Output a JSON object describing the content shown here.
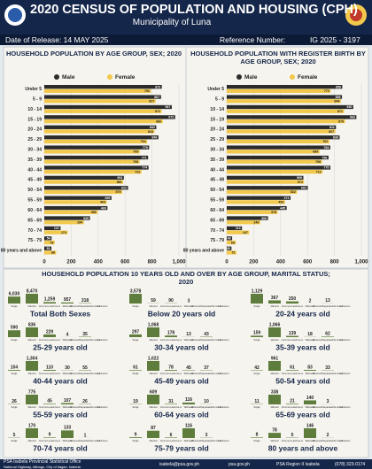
{
  "header": {
    "title": "2020 CENSUS OF POPULATION AND HOUSING (CPH)",
    "subtitle": "Municipality of Luna",
    "release": "Date of Release: 14 MAY 2025",
    "reference_label": "Reference Number:",
    "reference_number": "IG 2025 - 3197"
  },
  "chart_data": [
    {
      "type": "hbar",
      "title": "HOUSEHOLD POPULATION BY AGE GROUP, SEX; 2020",
      "categories": [
        "Under 5",
        "5 - 9",
        "10 - 14",
        "15 - 19",
        "20 - 24",
        "25 - 29",
        "30 - 34",
        "35 - 39",
        "40 - 44",
        "45 - 49",
        "50 - 54",
        "55 - 59",
        "60 - 64",
        "65 - 69",
        "70 - 74",
        "75 - 79",
        "80 years and above"
      ],
      "series": [
        {
          "name": "Male",
          "color": "#2b2b2b",
          "values": [
            873,
            867,
            947,
            972,
            832,
            848,
            779,
            771,
            774,
            591,
            622,
            499,
            469,
            339,
            121,
            54,
            53
          ]
        },
        {
          "name": "Female",
          "color": "#f2c94c",
          "values": [
            792,
            827,
            872,
            880,
            818,
            764,
            709,
            708,
            722,
            586,
            579,
            464,
            396,
            294,
            174,
            78,
            88
          ]
        }
      ],
      "xlim": [
        0,
        1000
      ],
      "xticks": [
        0,
        200,
        400,
        600,
        800,
        {
          "value": 1000,
          "label": "1,000"
        }
      ],
      "grid": true,
      "legend": "top"
    },
    {
      "type": "hbar",
      "title": "HOUSEHOLD POPULATION WITH REGISTER BIRTH BY AGE GROUP, SEX; 2020",
      "categories": [
        "Under 5",
        "5 - 9",
        "10 - 14",
        "15 - 19",
        "20 - 24",
        "25 - 29",
        "30 - 34",
        "35 - 39",
        "40 - 44",
        "45 - 49",
        "50 - 54",
        "55 - 59",
        "60 - 64",
        "65 - 69",
        "70 - 74",
        "75 - 79",
        "80 years and above"
      ],
      "series": [
        {
          "name": "Male",
          "color": "#2b2b2b",
          "values": [
            858,
            856,
            940,
            963,
            811,
            838,
            769,
            756,
            770,
            569,
            602,
            474,
            445,
            306,
            113,
            40,
            35
          ]
        },
        {
          "name": "Female",
          "color": "#f2c94c",
          "values": [
            772,
            848,
            871,
            879,
            807,
            762,
            689,
            708,
            712,
            574,
            522,
            433,
            378,
            249,
            167,
            68,
            72
          ]
        }
      ],
      "xlim": [
        0,
        1000
      ],
      "xticks": [
        0,
        200,
        400,
        600,
        800,
        {
          "value": 1000,
          "label": "1,000"
        }
      ],
      "grid": true,
      "legend": "top"
    },
    {
      "type": "panels",
      "title": "HOUSEHOLD POPULATION 10 YEARS OLD AND OVER BY AGE GROUP, MARITAL STATUS; 2020",
      "categories": [
        "Single",
        "Married",
        "Common-Law/Live-in",
        "Widowed",
        "Divorced/Separated/Annulled",
        "Unknown"
      ],
      "color": "#5e7d3c",
      "panels": [
        {
          "title": "Total Both Sexes",
          "values": [
            6030,
            8470,
            1259,
            957,
            318,
            null
          ],
          "value_labels": [
            "6,030",
            "8,470",
            "1,259",
            "957",
            "318",
            null
          ]
        },
        {
          "title": "Below 20 years old",
          "values": [
            3578,
            59,
            90,
            3,
            null,
            null
          ],
          "value_labels": [
            "3,578",
            "59",
            "90",
            "3",
            null,
            null
          ]
        },
        {
          "title": "20-24 years old",
          "values": [
            1129,
            367,
            250,
            2,
            13,
            null
          ],
          "value_labels": [
            "1,129",
            "367",
            "250",
            "2",
            "13",
            null
          ]
        },
        {
          "title": "25-29 years old",
          "values": [
            590,
            836,
            229,
            4,
            35,
            null
          ],
          "value_labels": [
            "590",
            "836",
            "229",
            "4",
            "35",
            null
          ]
        },
        {
          "title": "30-34 years old",
          "values": [
            297,
            1068,
            178,
            13,
            43,
            null
          ],
          "value_labels": [
            "297",
            "1,068",
            "178",
            "13",
            "43",
            null
          ]
        },
        {
          "title": "35-39 years old",
          "values": [
            159,
            1066,
            139,
            18,
            62,
            null
          ],
          "value_labels": [
            "159",
            "1,066",
            "139",
            "18",
            "62",
            null
          ]
        },
        {
          "title": "40-44 years old",
          "values": [
            104,
            1304,
            110,
            30,
            55,
            null
          ],
          "value_labels": [
            "104",
            "1,304",
            "110",
            "30",
            "55",
            null
          ]
        },
        {
          "title": "45-49 years old",
          "values": [
            61,
            1022,
            78,
            45,
            37,
            null
          ],
          "value_labels": [
            "61",
            "1,022",
            "78",
            "45",
            "37",
            null
          ]
        },
        {
          "title": "50-54 years old",
          "values": [
            42,
            961,
            61,
            83,
            33,
            null
          ],
          "value_labels": [
            "42",
            "961",
            "61",
            "83",
            "33",
            null
          ]
        },
        {
          "title": "55-59 years old",
          "values": [
            26,
            775,
            45,
            107,
            26,
            null
          ],
          "value_labels": [
            "26",
            "775",
            "45",
            "107",
            "26",
            null
          ]
        },
        {
          "title": "60-64 years old",
          "values": [
            19,
            609,
            31,
            116,
            10,
            null
          ],
          "value_labels": [
            "19",
            "609",
            "31",
            "116",
            "10",
            null
          ]
        },
        {
          "title": "65-69 years old",
          "values": [
            11,
            338,
            21,
            140,
            3,
            null
          ],
          "value_labels": [
            "11",
            "338",
            "21",
            "140",
            "3",
            null
          ]
        },
        {
          "title": "70-74 years old",
          "values": [
            5,
            170,
            9,
            133,
            1,
            null
          ],
          "value_labels": [
            "5",
            "170",
            "9",
            "133",
            "1",
            null
          ]
        },
        {
          "title": "75-79 years old",
          "values": [
            9,
            87,
            6,
            116,
            3,
            null
          ],
          "value_labels": [
            "9",
            "87",
            "6",
            "116",
            "3",
            null
          ]
        },
        {
          "title": "80 years and above",
          "values": [
            8,
            78,
            5,
            146,
            2,
            null
          ],
          "value_labels": [
            "8",
            "78",
            "5",
            "146",
            "2",
            null
          ]
        }
      ]
    }
  ],
  "footer": {
    "office": "PSA Isabela Provincial Statistical Office",
    "address": "National Highway, Alibagu, City of Ilagan, Isabela",
    "email": "isabela@psa.gov.ph",
    "website": "psa.gov.ph",
    "facebook": "PSA Region II Isabela",
    "phone": "(078) 323-0174"
  }
}
